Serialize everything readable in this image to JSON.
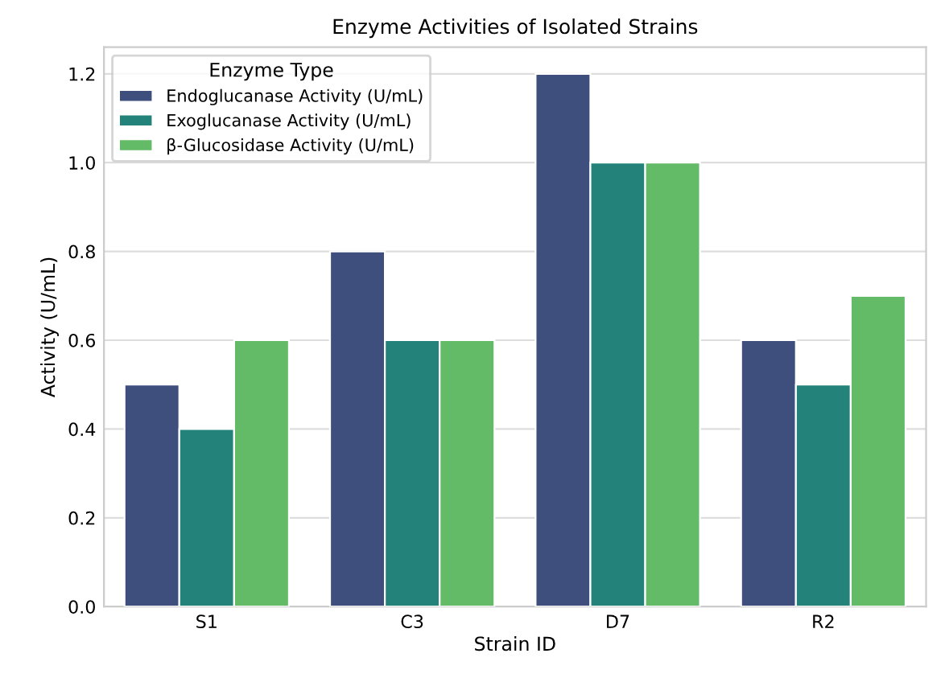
{
  "chart_data": {
    "type": "bar",
    "title": "Enzyme Activities of Isolated Strains",
    "xlabel": "Strain ID",
    "ylabel": "Activity (U/mL)",
    "legend_title": "Enzyme Type",
    "categories": [
      "S1",
      "C3",
      "D7",
      "R2"
    ],
    "series": [
      {
        "name": "Endoglucanase Activity (U/mL)",
        "color": "#3e4f7e",
        "values": [
          0.5,
          0.8,
          1.2,
          0.6
        ]
      },
      {
        "name": "Exoglucanase Activity (U/mL)",
        "color": "#23837b",
        "values": [
          0.4,
          0.6,
          1.0,
          0.5
        ]
      },
      {
        "name": "β-Glucosidase Activity (U/mL)",
        "color": "#64bb67",
        "values": [
          0.6,
          0.6,
          1.0,
          0.7
        ]
      }
    ],
    "ylim": [
      0,
      1.26
    ],
    "yticks": [
      {
        "value": 0,
        "label": "0.0"
      },
      0.2,
      0.4,
      0.6,
      0.8,
      {
        "value": 1,
        "label": "1.0"
      },
      1.2
    ],
    "grid": "y",
    "legend": "top left"
  }
}
